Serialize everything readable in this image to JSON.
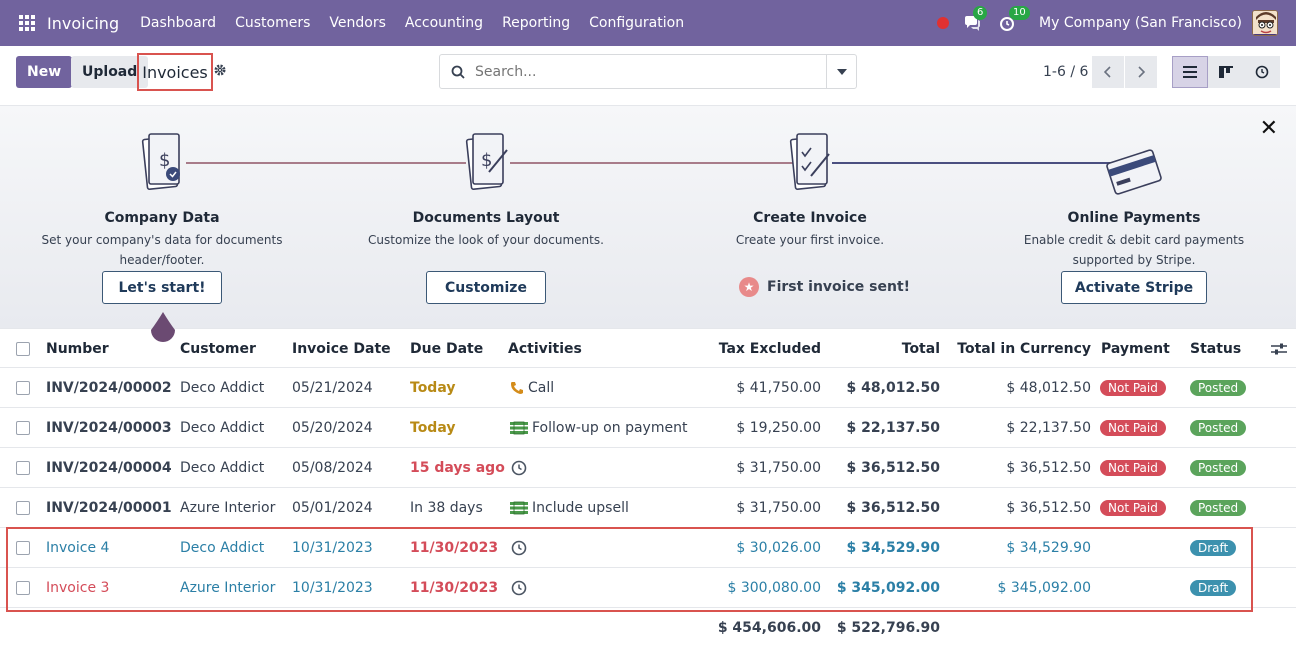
{
  "navbar": {
    "app_name": "Invoicing",
    "menu": [
      "Dashboard",
      "Customers",
      "Vendors",
      "Accounting",
      "Reporting",
      "Configuration"
    ],
    "messages_count": "6",
    "activities_count": "10",
    "company": "My Company (San Francisco)"
  },
  "control": {
    "new_label": "New",
    "upload_label": "Upload",
    "breadcrumb": "Invoices",
    "search_placeholder": "Search...",
    "pager": "1-6 / 6"
  },
  "onboarding": {
    "steps": [
      {
        "title": "Company Data",
        "desc1": "Set your company's data for documents",
        "desc2": "header/footer.",
        "button": "Let's start!"
      },
      {
        "title": "Documents Layout",
        "desc1": "Customize the look of your documents.",
        "desc2": "",
        "button": "Customize"
      },
      {
        "title": "Create Invoice",
        "desc1": "Create your first invoice.",
        "desc2": "",
        "done": "First invoice sent!"
      },
      {
        "title": "Online Payments",
        "desc1": "Enable credit & debit card payments",
        "desc2": "supported by Stripe.",
        "button": "Activate Stripe"
      }
    ]
  },
  "table": {
    "headers": {
      "number": "Number",
      "customer": "Customer",
      "invoice_date": "Invoice Date",
      "due_date": "Due Date",
      "activities": "Activities",
      "tax_excluded": "Tax Excluded",
      "total": "Total",
      "total_currency": "Total in Currency",
      "payment": "Payment",
      "status": "Status"
    },
    "rows": [
      {
        "number": "INV/2024/00002",
        "customer": "Deco Addict",
        "invoice_date": "05/21/2024",
        "due_date": "Today",
        "activity": "Call",
        "tax_excluded": "$ 41,750.00",
        "total": "$ 48,012.50",
        "total_currency": "$ 48,012.50",
        "payment": "Not Paid",
        "status": "Posted"
      },
      {
        "number": "INV/2024/00003",
        "customer": "Deco Addict",
        "invoice_date": "05/20/2024",
        "due_date": "Today",
        "activity": "Follow-up on payment",
        "tax_excluded": "$ 19,250.00",
        "total": "$ 22,137.50",
        "total_currency": "$ 22,137.50",
        "payment": "Not Paid",
        "status": "Posted"
      },
      {
        "number": "INV/2024/00004",
        "customer": "Deco Addict",
        "invoice_date": "05/08/2024",
        "due_date": "15 days ago",
        "activity": "",
        "tax_excluded": "$ 31,750.00",
        "total": "$ 36,512.50",
        "total_currency": "$ 36,512.50",
        "payment": "Not Paid",
        "status": "Posted"
      },
      {
        "number": "INV/2024/00001",
        "customer": "Azure Interior",
        "invoice_date": "05/01/2024",
        "due_date": "In 38 days",
        "activity": "Include upsell",
        "tax_excluded": "$ 31,750.00",
        "total": "$ 36,512.50",
        "total_currency": "$ 36,512.50",
        "payment": "Not Paid",
        "status": "Posted"
      },
      {
        "number": "Invoice 4",
        "customer": "Deco Addict",
        "invoice_date": "10/31/2023",
        "due_date": "11/30/2023",
        "activity": "",
        "tax_excluded": "$ 30,026.00",
        "total": "$ 34,529.90",
        "total_currency": "$ 34,529.90",
        "payment": "",
        "status": "Draft"
      },
      {
        "number": "Invoice 3",
        "customer": "Azure Interior",
        "invoice_date": "10/31/2023",
        "due_date": "11/30/2023",
        "activity": "",
        "tax_excluded": "$ 300,080.00",
        "total": "$ 345,092.00",
        "total_currency": "$ 345,092.00",
        "payment": "",
        "status": "Draft"
      }
    ],
    "totals": {
      "tax_excluded": "$ 454,606.00",
      "total": "$ 522,796.90"
    }
  }
}
